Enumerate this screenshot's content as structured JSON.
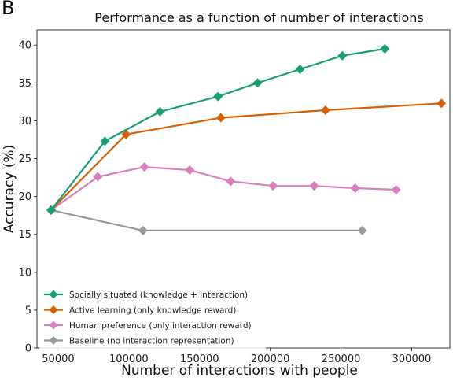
{
  "panel_label": "B",
  "chart_data": {
    "type": "line",
    "title": "Performance as a function of number of interactions",
    "xlabel": "Number of interactions with people",
    "ylabel": "Accuracy (%)",
    "xlim": [
      35000,
      327000
    ],
    "ylim": [
      0,
      42
    ],
    "xticks": [
      50000,
      100000,
      150000,
      200000,
      250000,
      300000
    ],
    "yticks": [
      0,
      5,
      10,
      15,
      20,
      25,
      30,
      35,
      40
    ],
    "grid": false,
    "legend_position": "lower-left",
    "series": [
      {
        "name": "Socially situated (knowledge + interaction)",
        "color": "#1a9e77",
        "x": [
          45000,
          83000,
          122000,
          163000,
          191000,
          221000,
          251000,
          281000
        ],
        "y": [
          18.2,
          27.3,
          31.2,
          33.2,
          35.0,
          36.8,
          38.6,
          39.5
        ]
      },
      {
        "name": "Active learning (only knowledge reward)",
        "color": "#d95f02",
        "x": [
          45000,
          98000,
          165000,
          239000,
          321000
        ],
        "y": [
          18.2,
          28.2,
          30.4,
          31.4,
          32.3
        ]
      },
      {
        "name": "Human preference (only interaction reward)",
        "color": "#d97fbb",
        "x": [
          45000,
          78000,
          111000,
          143000,
          172000,
          202000,
          231000,
          260000,
          289000
        ],
        "y": [
          18.2,
          22.6,
          23.9,
          23.5,
          22.0,
          21.4,
          21.4,
          21.1,
          20.9
        ]
      },
      {
        "name": "Baseline (no interaction representation)",
        "color": "#9a9a9a",
        "x": [
          45000,
          110000,
          265000
        ],
        "y": [
          18.2,
          15.5,
          15.5
        ]
      }
    ]
  }
}
